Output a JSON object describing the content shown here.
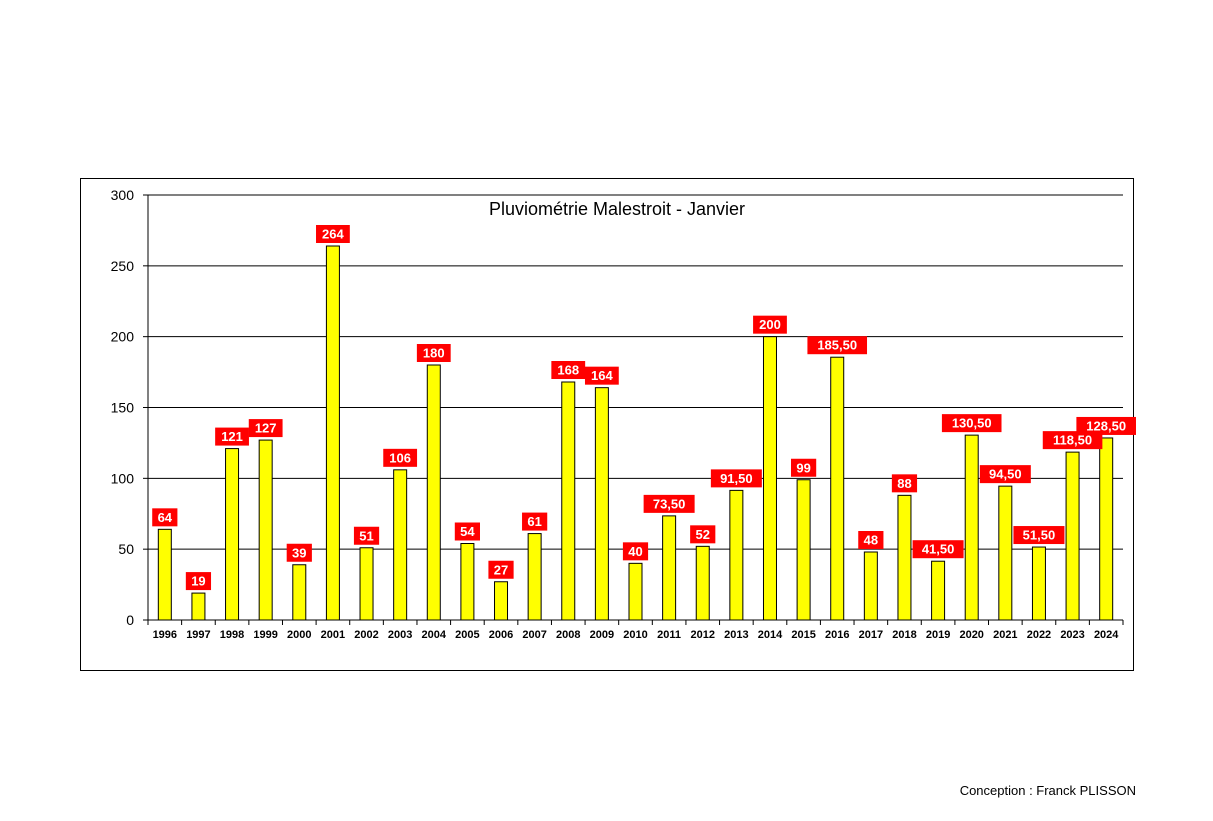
{
  "chart_data": {
    "type": "bar",
    "title": "Pluviométrie Malestroit - Janvier",
    "xlabel": "",
    "ylabel": "",
    "ylim": [
      0,
      300
    ],
    "yticks": [
      0,
      50,
      100,
      150,
      200,
      250,
      300
    ],
    "grid": true,
    "legend": "none",
    "categories": [
      "1996",
      "1997",
      "1998",
      "1999",
      "2000",
      "2001",
      "2002",
      "2003",
      "2004",
      "2005",
      "2006",
      "2007",
      "2008",
      "2009",
      "2010",
      "2011",
      "2012",
      "2013",
      "2014",
      "2015",
      "2016",
      "2017",
      "2018",
      "2019",
      "2020",
      "2021",
      "2022",
      "2023",
      "2024"
    ],
    "values": [
      64,
      19,
      121,
      127,
      39,
      264,
      51,
      106,
      180,
      54,
      27,
      61,
      168,
      164,
      40,
      73.5,
      52,
      91.5,
      200,
      99,
      185.5,
      48,
      88,
      41.5,
      130.5,
      94.5,
      51.5,
      118.5,
      128.5
    ],
    "data_labels": [
      "64",
      "19",
      "121",
      "127",
      "39",
      "264",
      "51",
      "106",
      "180",
      "54",
      "27",
      "61",
      "168",
      "164",
      "40",
      "73,50",
      "52",
      "91,50",
      "200",
      "99",
      "185,50",
      "48",
      "88",
      "41,50",
      "130,50",
      "94,50",
      "51,50",
      "118,50",
      "128,50"
    ],
    "colors": {
      "bar": "#ffff00",
      "bar_edge": "#000000",
      "label_bg": "#ff0000",
      "label_text": "#ffffff",
      "grid": "#000000"
    }
  },
  "footer": {
    "credit": "Conception : Franck PLISSON"
  }
}
